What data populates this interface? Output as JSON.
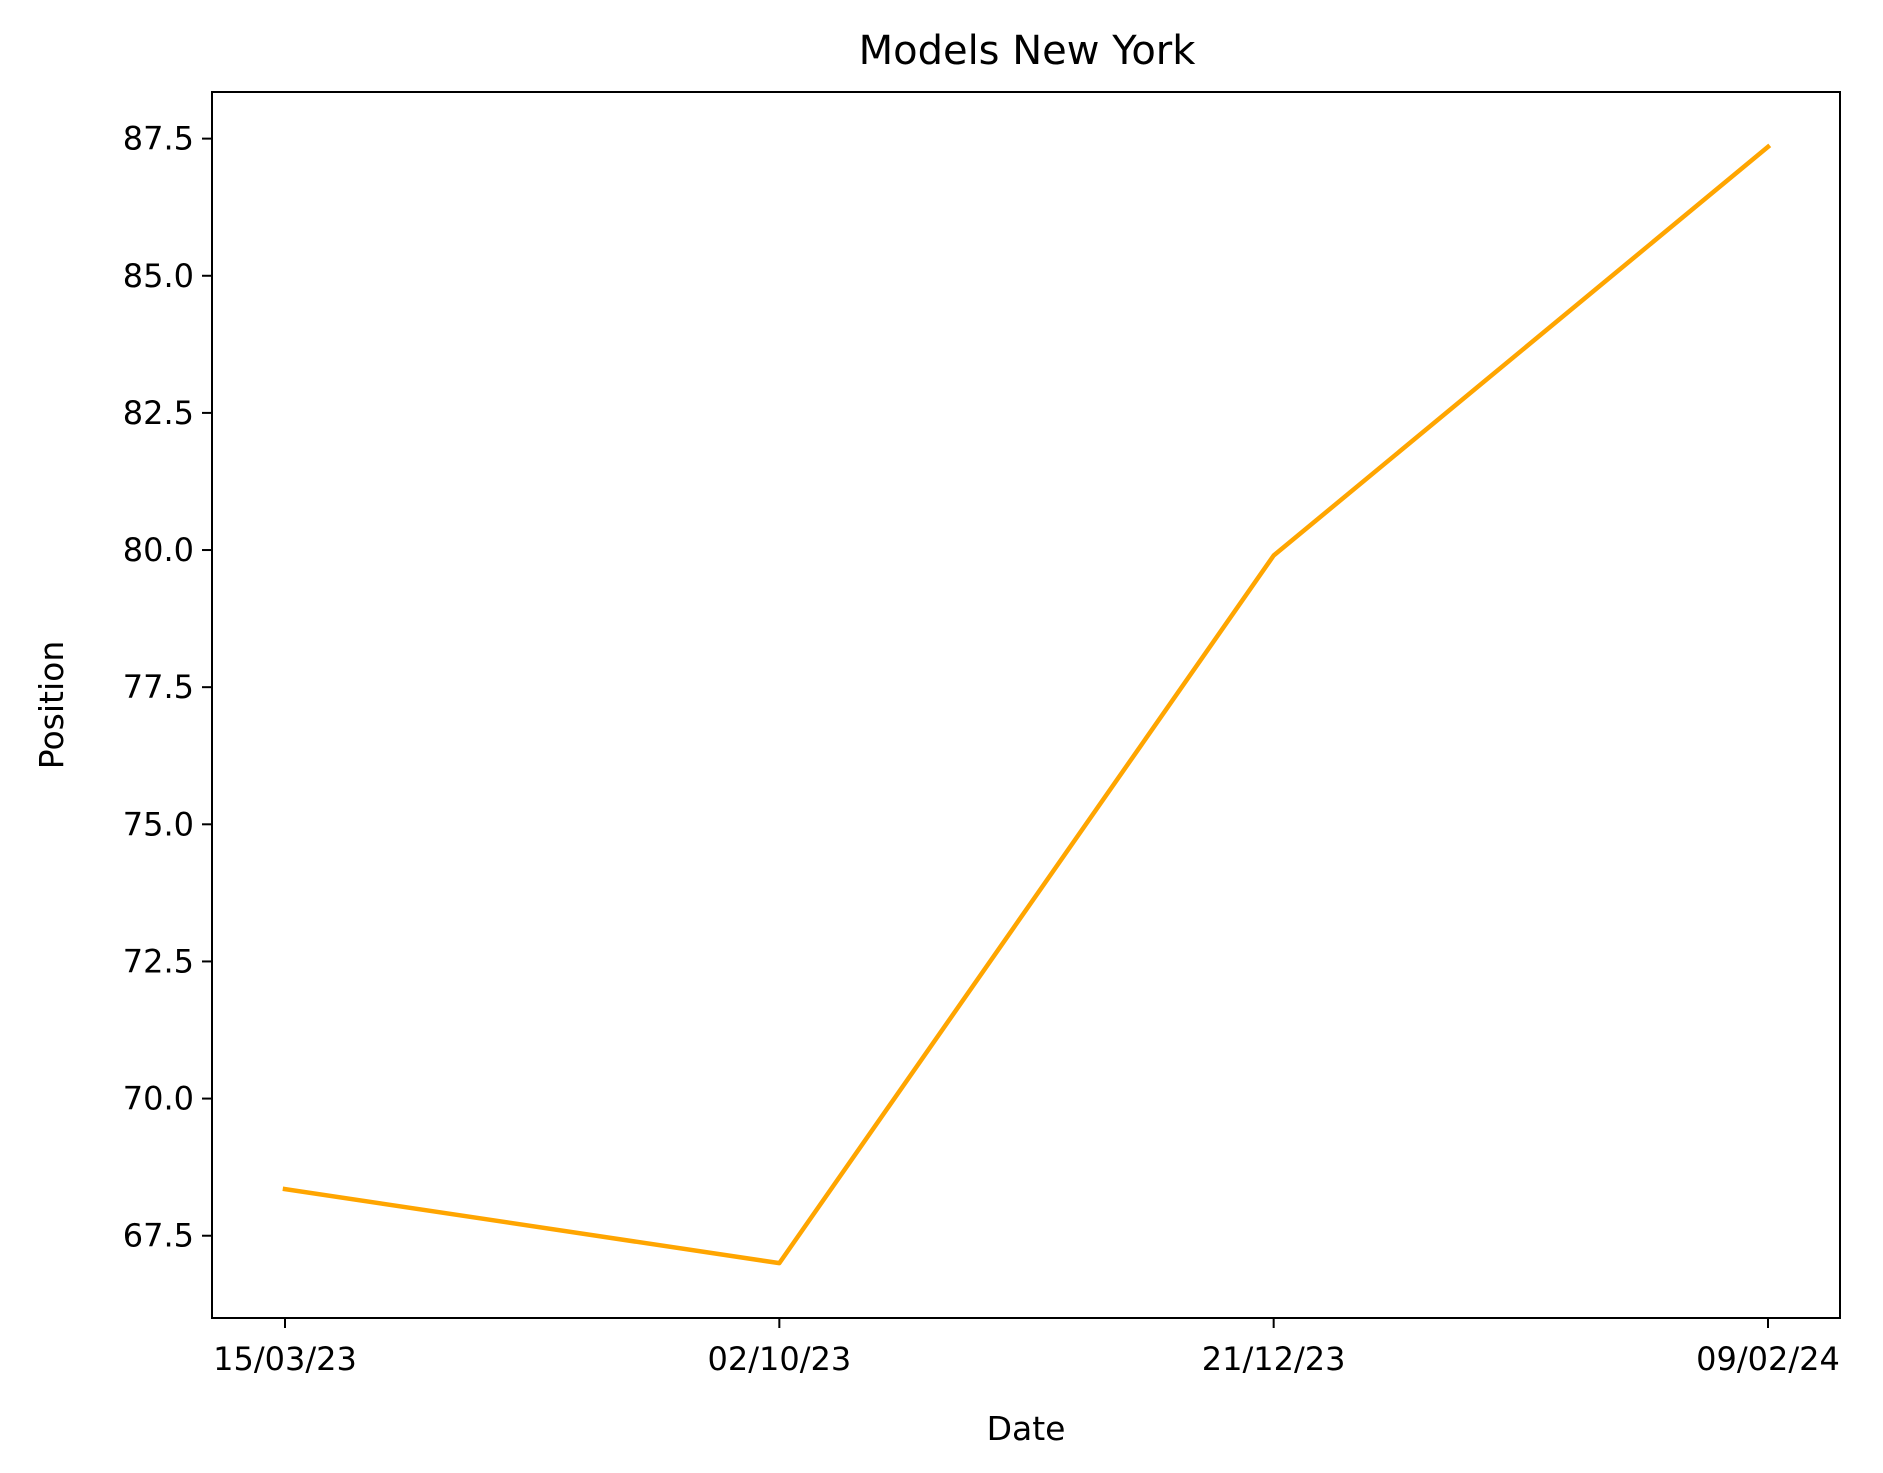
{
  "chart_data": {
    "type": "line",
    "title": "Models New York",
    "xlabel": "Date",
    "ylabel": "Position",
    "categories": [
      "15/03/23",
      "02/10/23",
      "21/12/23",
      "09/02/24"
    ],
    "series": [
      {
        "values": [
          68.35,
          67.0,
          79.9,
          87.35
        ],
        "color": "#ffa500"
      }
    ],
    "ylim": [
      66.0,
      88.35
    ],
    "yticks": [
      67.5,
      70.0,
      72.5,
      75.0,
      77.5,
      80.0,
      82.5,
      85.0,
      87.5
    ],
    "ytick_labels": [
      "67.5",
      "70.0",
      "72.5",
      "75.0",
      "77.5",
      "80.0",
      "82.5",
      "85.0",
      "87.5"
    ],
    "grid": false,
    "legend": "none"
  }
}
